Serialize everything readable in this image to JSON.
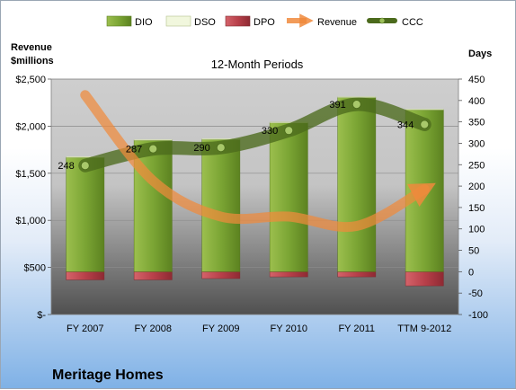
{
  "chart_data": {
    "type": "bar",
    "title": "12-Month Periods",
    "company": "Meritage Homes",
    "left_axis_label": [
      "Revenue",
      "$millions"
    ],
    "right_axis_label": "Days",
    "categories": [
      "FY 2007",
      "FY 2008",
      "FY 2009",
      "FY 2010",
      "FY 2011",
      "TTM 9-2012"
    ],
    "left_axis": {
      "min": 0,
      "max": 2500,
      "step": 500,
      "tick_labels": [
        "$-",
        "$500",
        "$1,000",
        "$1,500",
        "$2,000",
        "$2,500"
      ]
    },
    "right_axis": {
      "min": -100,
      "max": 450,
      "step": 50,
      "tick_labels": [
        "-100",
        "-50",
        "0",
        "50",
        "100",
        "150",
        "200",
        "250",
        "300",
        "350",
        "400",
        "450"
      ]
    },
    "legend": [
      "DIO",
      "DSO",
      "DPO",
      "Revenue",
      "CCC"
    ],
    "legend_position": "top",
    "series": [
      {
        "name": "DIO",
        "type": "stacked-bar",
        "axis": "right",
        "color": "#6f9a2c",
        "values": [
          267,
          307,
          309,
          348,
          407,
          378
        ]
      },
      {
        "name": "DSO",
        "type": "stacked-bar",
        "axis": "right",
        "color": "#eef5d8",
        "values": [
          2,
          2,
          2,
          2,
          2,
          2
        ]
      },
      {
        "name": "DPO",
        "type": "stacked-bar-negative",
        "axis": "right",
        "color": "#b8404a",
        "values": [
          -19,
          -19,
          -16,
          -12,
          -12,
          -33
        ]
      },
      {
        "name": "Revenue",
        "type": "line-arrow",
        "axis": "left",
        "color": "#f0883c",
        "values": [
          2330,
          1420,
          1040,
          1040,
          940,
          1330
        ]
      },
      {
        "name": "CCC",
        "type": "line",
        "axis": "right",
        "color": "#4b6a1c",
        "values": [
          248,
          287,
          290,
          330,
          391,
          344
        ]
      }
    ],
    "data_labels": [
      "248",
      "287",
      "290",
      "330",
      "391",
      "344"
    ],
    "grid": true,
    "colors": {
      "plot_top": "#cdcdcd",
      "plot_bottom": "#4f4f4f"
    }
  }
}
